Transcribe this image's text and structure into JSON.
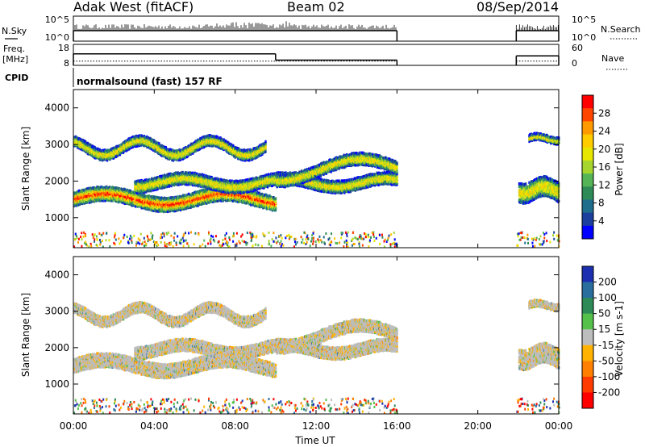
{
  "header": {
    "station": "Adak West (fitACF)",
    "beam": "Beam 02",
    "date": "08/Sep/2014"
  },
  "left_labels": {
    "nsky": "N.Sky",
    "freq": "Freq.",
    "freq_unit": "[MHz]",
    "cpid": "CPID"
  },
  "right_labels": {
    "nsearch": "N.Search",
    "nave": "Nave"
  },
  "cpid_text": "normalsound (fast) 157 RF",
  "chart_data": [
    {
      "type": "line",
      "name": "noise-panel",
      "left_ticks": [
        "10^5",
        "10^0"
      ],
      "right_ticks": [
        "10^5",
        "10^0"
      ],
      "segments": [
        [
          0,
          16
        ],
        [
          21.9,
          24
        ]
      ]
    },
    {
      "type": "line",
      "name": "frequency-panel",
      "left_ticks": [
        "18",
        "8"
      ],
      "right_ticks": [
        "60",
        "0"
      ],
      "freq_mhz": [
        {
          "x": [
            0,
            10
          ],
          "y": 13.5
        },
        {
          "x": [
            10,
            16
          ],
          "y": 10.5
        },
        {
          "x": [
            21.9,
            24
          ],
          "y": 12.5
        }
      ],
      "nave_level": 12
    },
    {
      "type": "heatmap",
      "name": "power-panel",
      "ylabel": "Slant Range [km]",
      "yticks": [
        "4000",
        "3000",
        "2000",
        "1000"
      ],
      "ytick_values": [
        4000,
        3000,
        2000,
        1000
      ],
      "ylim": [
        180,
        4500
      ],
      "colorbar": {
        "label": "Power [dB]",
        "ticks": [
          "28",
          "24",
          "20",
          "16",
          "12",
          "8",
          "4"
        ],
        "colors": [
          "#ff0000",
          "#ff4500",
          "#ff9900",
          "#ffcc00",
          "#e6e600",
          "#a6d62e",
          "#55b455",
          "#2e8b57",
          "#1e6e8c",
          "#1c3f9e",
          "#0000ff"
        ]
      }
    },
    {
      "type": "heatmap",
      "name": "velocity-panel",
      "ylabel": "Slant Range [km]",
      "yticks": [
        "4000",
        "3000",
        "2000",
        "1000"
      ],
      "ytick_values": [
        4000,
        3000,
        2000,
        1000
      ],
      "ylim": [
        180,
        4500
      ],
      "colorbar": {
        "label": "Velocity [m s-1]",
        "ticks": [
          "200",
          "100",
          "50",
          "15",
          "-15",
          "-50",
          "-100",
          "-200"
        ],
        "colors": [
          "#1c2fb0",
          "#2a6e9e",
          "#2e8b57",
          "#55c04a",
          "#bdbdbd",
          "#ffb300",
          "#ff8000",
          "#ff3b00",
          "#ff0000"
        ]
      }
    }
  ],
  "xaxis": {
    "label": "Time UT",
    "ticks": [
      "00:00",
      "04:00",
      "08:00",
      "12:00",
      "16:00",
      "20:00",
      "00:00"
    ],
    "tick_hours": [
      0,
      4,
      8,
      12,
      16,
      20,
      24
    ]
  },
  "scatter_bands": [
    {
      "t0": 0,
      "t1": 10,
      "c0": 1500,
      "amp": 150,
      "period": 6,
      "w": 350
    },
    {
      "t0": 3,
      "t1": 16,
      "c0": 1950,
      "amp": 120,
      "period": 5,
      "w": 300
    },
    {
      "t0": 0,
      "t1": 9.5,
      "c0": 2900,
      "amp": 200,
      "period": 3.5,
      "w": 250
    },
    {
      "t0": 10,
      "t1": 16,
      "c0": 2300,
      "amp": 300,
      "period": 8,
      "w": 300
    },
    {
      "t0": 22,
      "t1": 24,
      "c0": 1750,
      "amp": 100,
      "period": 2,
      "w": 500
    },
    {
      "t0": 22.5,
      "t1": 24,
      "c0": 3150,
      "amp": 60,
      "period": 2,
      "w": 150
    }
  ]
}
